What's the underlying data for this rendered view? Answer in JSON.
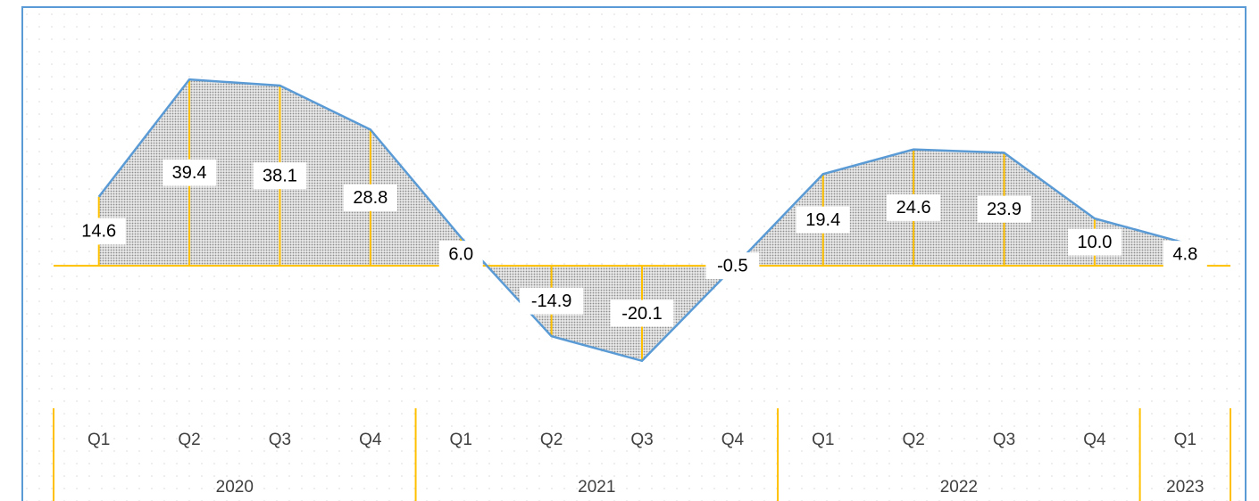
{
  "chart_data": {
    "type": "area-line",
    "groups": [
      {
        "name": "2020",
        "categories": [
          "Q1",
          "Q2",
          "Q3",
          "Q4"
        ]
      },
      {
        "name": "2021",
        "categories": [
          "Q1",
          "Q2",
          "Q3",
          "Q4"
        ]
      },
      {
        "name": "2022",
        "categories": [
          "Q1",
          "Q2",
          "Q3",
          "Q4"
        ]
      },
      {
        "name": "2023",
        "categories": [
          "Q1"
        ]
      }
    ],
    "values": [
      14.6,
      39.4,
      38.1,
      28.8,
      6.0,
      -14.9,
      -20.1,
      -0.5,
      19.4,
      24.6,
      23.9,
      10.0,
      4.8
    ],
    "value_labels": [
      "14.6",
      "39.4",
      "38.1",
      "28.8",
      "6.0",
      "-14.9",
      "-20.1",
      "-0.5",
      "19.4",
      "24.6",
      "23.9",
      "10.0",
      "4.8"
    ],
    "line_color": "#5b9bd5",
    "drop_line_color": "#ffc000",
    "area_color": "#a6a6a6",
    "ylim": [
      -29,
      53
    ]
  }
}
